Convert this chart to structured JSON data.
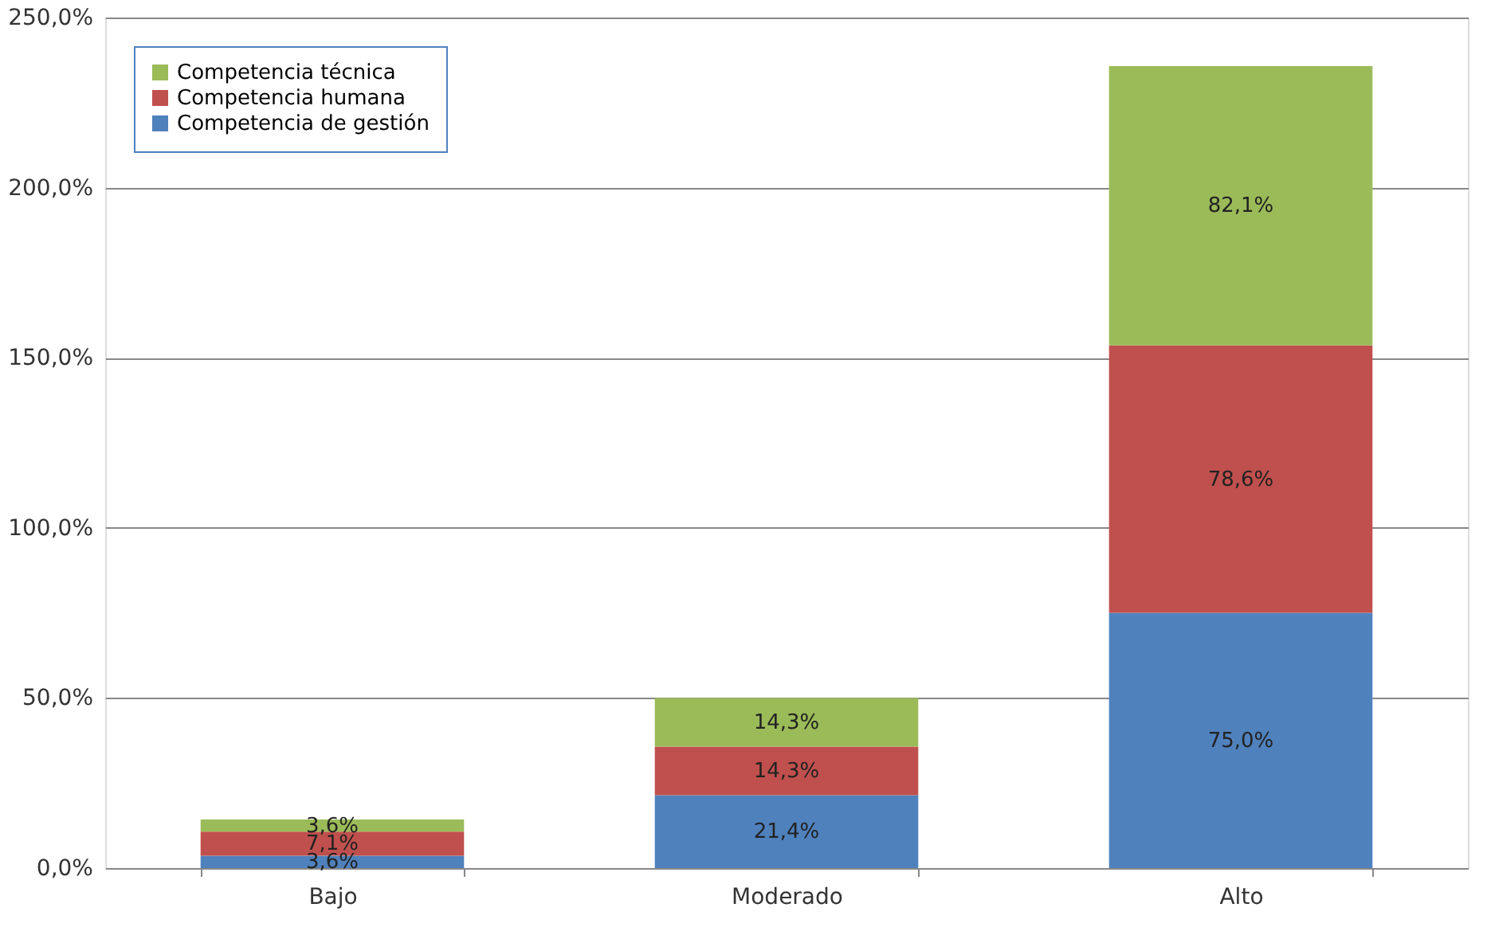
{
  "chart_data": {
    "type": "bar",
    "stacked": true,
    "categories": [
      "Bajo",
      "Moderado",
      "Alto"
    ],
    "series": [
      {
        "name": "Competencia de gestión",
        "color": "#4f81bd",
        "values": [
          3.6,
          21.4,
          75.0
        ],
        "value_labels": [
          "3,6%",
          "21,4%",
          "75,0%"
        ]
      },
      {
        "name": "Competencia humana",
        "color": "#c0504d",
        "values": [
          7.1,
          14.3,
          78.6
        ],
        "value_labels": [
          "7,1%",
          "14,3%",
          "78,6%"
        ]
      },
      {
        "name": "Competencia técnica",
        "color": "#9bbb59",
        "values": [
          3.6,
          14.3,
          82.1
        ],
        "value_labels": [
          "3,6%",
          "14,3%",
          "82,1%"
        ]
      }
    ],
    "ylim": [
      0,
      250
    ],
    "yticks": [
      {
        "value": 0,
        "label": "0,0%"
      },
      {
        "value": 50,
        "label": "50,0%"
      },
      {
        "value": 100,
        "label": "100,0%"
      },
      {
        "value": 150,
        "label": "150,0%"
      },
      {
        "value": 200,
        "label": "200,0%"
      },
      {
        "value": 250,
        "label": "250,0%"
      }
    ],
    "grid": "y",
    "legend": "top left"
  }
}
